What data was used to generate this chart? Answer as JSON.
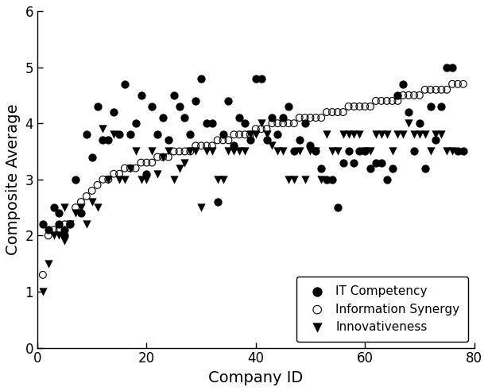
{
  "it_competency_x": [
    1,
    2,
    3,
    4,
    4,
    5,
    5,
    6,
    7,
    8,
    9,
    10,
    11,
    12,
    13,
    14,
    15,
    16,
    17,
    18,
    19,
    20,
    21,
    22,
    23,
    24,
    25,
    26,
    27,
    28,
    29,
    30,
    31,
    32,
    33,
    34,
    35,
    36,
    37,
    38,
    39,
    40,
    41,
    42,
    43,
    44,
    45,
    46,
    47,
    48,
    49,
    50,
    51,
    52,
    53,
    54,
    55,
    56,
    57,
    58,
    59,
    60,
    61,
    62,
    63,
    64,
    65,
    66,
    67,
    68,
    69,
    70,
    71,
    72,
    73,
    74,
    75,
    76,
    77,
    78
  ],
  "it_competency_y": [
    2.2,
    2.1,
    2.5,
    2.2,
    2.4,
    2.1,
    2.0,
    2.2,
    3.0,
    2.4,
    3.8,
    3.4,
    4.3,
    3.7,
    3.7,
    4.2,
    3.8,
    4.7,
    3.8,
    4.0,
    4.5,
    3.1,
    4.3,
    3.8,
    4.1,
    3.7,
    4.5,
    4.3,
    4.1,
    3.8,
    4.4,
    4.8,
    4.0,
    4.0,
    2.6,
    3.8,
    4.4,
    3.6,
    4.1,
    4.0,
    3.7,
    4.8,
    4.8,
    3.7,
    4.1,
    3.8,
    4.1,
    4.3,
    3.5,
    3.7,
    4.0,
    3.6,
    3.5,
    3.2,
    3.0,
    3.0,
    2.5,
    3.3,
    3.5,
    3.3,
    3.5,
    3.5,
    3.2,
    3.3,
    3.3,
    3.0,
    3.2,
    4.5,
    4.7,
    4.2,
    3.5,
    4.0,
    3.2,
    4.3,
    3.7,
    4.3,
    5.0,
    5.0,
    3.5,
    3.5
  ],
  "info_synergy_x": [
    1,
    2,
    3,
    4,
    5,
    6,
    7,
    8,
    9,
    10,
    11,
    12,
    13,
    14,
    15,
    16,
    17,
    18,
    19,
    20,
    21,
    22,
    23,
    24,
    25,
    26,
    27,
    28,
    29,
    30,
    31,
    32,
    33,
    34,
    35,
    36,
    37,
    38,
    39,
    40,
    41,
    42,
    43,
    44,
    45,
    46,
    47,
    48,
    49,
    50,
    51,
    52,
    53,
    54,
    55,
    56,
    57,
    58,
    59,
    60,
    61,
    62,
    63,
    64,
    65,
    66,
    67,
    68,
    69,
    70,
    71,
    72,
    73,
    74,
    75,
    76,
    77,
    78
  ],
  "info_synergy_y": [
    1.3,
    2.0,
    2.1,
    2.1,
    2.2,
    2.2,
    2.5,
    2.6,
    2.7,
    2.8,
    2.9,
    3.0,
    3.0,
    3.1,
    3.1,
    3.2,
    3.2,
    3.2,
    3.3,
    3.3,
    3.3,
    3.4,
    3.4,
    3.4,
    3.5,
    3.5,
    3.5,
    3.5,
    3.6,
    3.6,
    3.6,
    3.6,
    3.7,
    3.7,
    3.7,
    3.8,
    3.8,
    3.8,
    3.8,
    3.9,
    3.9,
    3.9,
    4.0,
    4.0,
    4.0,
    4.0,
    4.0,
    4.1,
    4.1,
    4.1,
    4.1,
    4.1,
    4.2,
    4.2,
    4.2,
    4.2,
    4.3,
    4.3,
    4.3,
    4.3,
    4.3,
    4.4,
    4.4,
    4.4,
    4.4,
    4.4,
    4.5,
    4.5,
    4.5,
    4.5,
    4.6,
    4.6,
    4.6,
    4.6,
    4.6,
    4.7,
    4.7,
    4.7
  ],
  "innovativeness_x": [
    1,
    2,
    3,
    4,
    5,
    5,
    6,
    7,
    8,
    9,
    10,
    11,
    12,
    13,
    14,
    15,
    16,
    17,
    18,
    19,
    20,
    21,
    22,
    23,
    24,
    25,
    26,
    27,
    28,
    29,
    30,
    31,
    32,
    33,
    34,
    35,
    36,
    37,
    38,
    39,
    40,
    41,
    42,
    43,
    44,
    45,
    46,
    47,
    48,
    49,
    50,
    51,
    52,
    53,
    54,
    55,
    56,
    57,
    58,
    59,
    60,
    61,
    62,
    63,
    64,
    65,
    66,
    67,
    68,
    69,
    70,
    71,
    72,
    73,
    74,
    75,
    76
  ],
  "innovativeness_y": [
    1.0,
    1.5,
    2.0,
    2.0,
    1.9,
    2.5,
    2.2,
    2.4,
    2.5,
    2.2,
    2.6,
    2.5,
    3.9,
    3.0,
    3.8,
    3.0,
    3.0,
    3.2,
    3.5,
    3.0,
    3.0,
    3.5,
    3.1,
    3.4,
    3.5,
    3.0,
    3.2,
    3.3,
    3.5,
    3.5,
    2.5,
    3.5,
    3.5,
    3.0,
    3.0,
    3.5,
    3.5,
    3.5,
    3.5,
    3.8,
    3.8,
    4.0,
    3.8,
    3.6,
    3.5,
    3.5,
    3.0,
    3.0,
    3.5,
    3.0,
    3.5,
    3.5,
    3.0,
    3.8,
    3.5,
    3.5,
    3.8,
    3.8,
    3.8,
    3.8,
    3.5,
    3.5,
    3.8,
    3.8,
    3.8,
    3.5,
    3.8,
    3.8,
    4.0,
    3.8,
    3.8,
    3.8,
    3.5,
    3.8,
    3.8,
    3.5,
    3.5
  ],
  "xlabel": "Company ID",
  "ylabel": "Composite Average",
  "xlim": [
    0,
    80
  ],
  "ylim": [
    0,
    6
  ],
  "xticks": [
    0,
    20,
    40,
    60,
    80
  ],
  "yticks": [
    0,
    1,
    2,
    3,
    4,
    5,
    6
  ],
  "legend_labels": [
    "IT Competency",
    "Information Synergy",
    "Innovativeness"
  ],
  "background_color": "#ffffff",
  "marker_size_filled": 55,
  "marker_size_open": 40,
  "xlabel_fontsize": 14,
  "ylabel_fontsize": 14,
  "tick_fontsize": 12,
  "legend_fontsize": 11
}
